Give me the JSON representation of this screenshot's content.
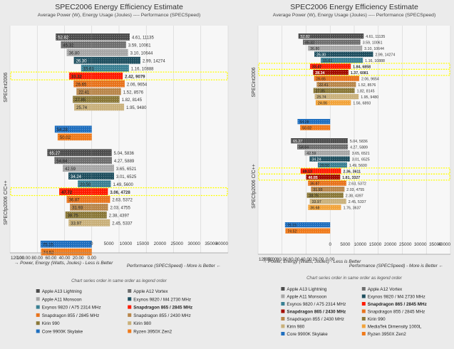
{
  "chart_data": [
    {
      "type": "bar",
      "title": "SPEC2006 Energy Efficiency Estimate",
      "subtitle": "Average Power (W), Energy Usage (Joules) ---- Performance (SPECSpeed)",
      "x_axis_energy_label": "→ Power, Energy (Watts, Joules) - Less is Better",
      "x_axis_perf_label": "Performance (SPECSpeed) - More is Better ←",
      "legend_caption": "Chart series order in same order as legend order",
      "energy_ticks": [
        "0",
        "5000",
        "10000",
        "15000",
        "20000",
        "25000",
        "30000",
        "35000",
        "40000"
      ],
      "perf_ticks": [
        "120.00",
        "100.00",
        "80.00",
        "60.00",
        "40.00",
        "20.00",
        "0.00"
      ],
      "energy_range": [
        0,
        40000
      ],
      "perf_range": [
        0,
        120
      ],
      "groups": [
        {
          "name": "SPECint2006",
          "rows": [
            {
              "energy": 11135,
              "label": "4.61, 11135",
              "perf": 52.82,
              "perf_label": "52.82",
              "color": "#4d4d4d"
            },
            {
              "energy": 10061,
              "label": "3.59, 10061",
              "perf": 45.32,
              "perf_label": "45.32",
              "color": "#6e6e6e"
            },
            {
              "energy": 10644,
              "label": "3.10, 10644",
              "perf": 36.8,
              "perf_label": "36.80",
              "color": "#a6a6a6"
            },
            {
              "energy": 14274,
              "label": "2.99, 14274",
              "perf": 26.3,
              "perf_label": "26.30",
              "color": "#1f4f5f"
            },
            {
              "energy": 10888,
              "label": "1.16, 10888",
              "perf": 15.61,
              "perf_label": "15.61",
              "color": "#3a8093"
            },
            {
              "energy": 9079,
              "label": "2.42, 9079",
              "perf": 33.32,
              "perf_label": "33.32",
              "color": "#ff1a00",
              "highlight": true
            },
            {
              "energy": 9654,
              "label": "2.06, 9654",
              "perf": 26.65,
              "perf_label": "26.65",
              "color": "#e8731c"
            },
            {
              "energy": 8576,
              "label": "1.52, 8576",
              "perf": 22.41,
              "perf_label": "22.41",
              "color": "#b8864a"
            },
            {
              "energy": 8145,
              "label": "1.82, 8145",
              "perf": 27.85,
              "perf_label": "27.85",
              "color": "#8a7838"
            },
            {
              "energy": 9480,
              "label": "1.95, 9480",
              "perf": 25.74,
              "perf_label": "25.74",
              "color": "#c9b07a"
            },
            {
              "spacer": true
            },
            {
              "energy": 0,
              "label": "",
              "perf": 54.28,
              "perf_label": "54.28",
              "color": "#1f6fbf"
            },
            {
              "energy": 0,
              "label": "",
              "perf": 50.02,
              "perf_label": "50.02",
              "color": "#f07a1a"
            }
          ]
        },
        {
          "name": "SPECfp2006 C/C++",
          "rows": [
            {
              "energy": 5836,
              "label": "5.04, 5836",
              "perf": 65.27,
              "perf_label": "65.27",
              "color": "#4d4d4d"
            },
            {
              "energy": 5889,
              "label": "4.27, 5889",
              "perf": 54.84,
              "perf_label": "54.84",
              "color": "#6e6e6e"
            },
            {
              "energy": 6521,
              "label": "3.65, 6521",
              "perf": 42.59,
              "perf_label": "42.59",
              "color": "#a6a6a6"
            },
            {
              "energy": 6525,
              "label": "3.01, 6525",
              "perf": 34.24,
              "perf_label": "34.24",
              "color": "#1f4f5f"
            },
            {
              "energy": 5600,
              "label": "1.49, 5600",
              "perf": 20.5,
              "perf_label": "20.50",
              "color": "#3a8093"
            },
            {
              "energy": 4728,
              "label": "3.06, 4728",
              "perf": 47.72,
              "perf_label": "47.72",
              "color": "#ff1a00",
              "highlight": true
            },
            {
              "energy": 5372,
              "label": "2.63, 5372",
              "perf": 36.87,
              "perf_label": "36.87",
              "color": "#e8731c"
            },
            {
              "energy": 4755,
              "label": "2.03, 4755",
              "perf": 31.93,
              "perf_label": "31.93",
              "color": "#b8864a"
            },
            {
              "energy": 4397,
              "label": "2.38, 4397",
              "perf": 38.75,
              "perf_label": "38.75",
              "color": "#8a7838"
            },
            {
              "energy": 5337,
              "label": "2.45, 5337",
              "perf": 33.97,
              "perf_label": "33.97",
              "color": "#c9b07a"
            },
            {
              "spacer": true
            },
            {
              "energy": 0,
              "label": "",
              "perf": 75.15,
              "perf_label": "75.15",
              "color": "#1f6fbf"
            },
            {
              "energy": 0,
              "label": "",
              "perf": 74.52,
              "perf_label": "74.52",
              "color": "#f07a1a"
            }
          ]
        }
      ],
      "legend": [
        {
          "name": "Apple A13 Lightning",
          "color": "#4d4d4d",
          "bold": false
        },
        {
          "name": "Apple A12 Vortex",
          "color": "#6e6e6e",
          "bold": false
        },
        {
          "name": "Apple A11 Monsoon",
          "color": "#a6a6a6",
          "bold": false
        },
        {
          "name": "Exynos 9820 / M4 2730 MHz",
          "color": "#1f4f5f",
          "bold": false
        },
        {
          "name": "Exynos 9820 / A75 2314 MHz",
          "color": "#3a8093",
          "bold": false
        },
        {
          "name": "Snapdragon 865 / 2845 MHz",
          "color": "#ff1a00",
          "bold": true
        },
        {
          "name": "Snapdragon 855 / 2845 MHz",
          "color": "#e8731c",
          "bold": false
        },
        {
          "name": "Snapdragon 855 / 2430 MHz",
          "color": "#b8864a",
          "bold": false
        },
        {
          "name": "Kirin 990",
          "color": "#8a7838",
          "bold": false
        },
        {
          "name": "Kirin 980",
          "color": "#c9b07a",
          "bold": false
        },
        {
          "name": "Core 9900K Skylake",
          "color": "#1f6fbf",
          "bold": false
        },
        {
          "name": "Ryzen 3950X Zen2",
          "color": "#f07a1a",
          "bold": false
        }
      ]
    },
    {
      "type": "bar",
      "title": "SPEC2006 Energy Efficiency Estimate",
      "subtitle": "Average Power (W), Energy Usage (Joules) ---- Performance (SPECSpeed)",
      "x_axis_energy_label": "→ Power, Energy (Watts, Joules) - Less is Better",
      "x_axis_perf_label": "Performance (SPECSpeed) - More is Better ←",
      "legend_caption": "Chart series order in same order as legend order",
      "energy_ticks": [
        "0",
        "5000",
        "10000",
        "15000",
        "20000",
        "25000",
        "30000",
        "35000",
        "40000"
      ],
      "perf_ticks": [
        "120.00",
        "100.00",
        "80.00",
        "60.00",
        "40.00",
        "20.00",
        "0.00"
      ],
      "energy_range": [
        0,
        40000
      ],
      "perf_range": [
        0,
        120
      ],
      "groups": [
        {
          "name": "SPECint2006",
          "rows": [
            {
              "energy": 11135,
              "label": "4.61, 11135",
              "perf": 52.82,
              "perf_label": "52.82",
              "color": "#4d4d4d"
            },
            {
              "energy": 10061,
              "label": "3.59, 10061",
              "perf": 45.32,
              "perf_label": "45.32",
              "color": "#6e6e6e"
            },
            {
              "energy": 10644,
              "label": "3.10, 10644",
              "perf": 36.8,
              "perf_label": "36.80",
              "color": "#a6a6a6"
            },
            {
              "energy": 14274,
              "label": "2.99, 14274",
              "perf": 26.3,
              "perf_label": "26.30",
              "color": "#1f4f5f"
            },
            {
              "energy": 10888,
              "label": "1.16, 10888",
              "perf": 15.61,
              "perf_label": "15.61",
              "color": "#3a8093"
            },
            {
              "energy": 6858,
              "label": "1.84, 6858",
              "perf": 33.47,
              "perf_label": "33.47",
              "color": "#ff1a00",
              "highlight": true
            },
            {
              "energy": 6081,
              "label": "1.37, 6081",
              "perf": 28.34,
              "perf_label": "28.34",
              "color": "#a30d00",
              "highlight": true
            },
            {
              "energy": 9654,
              "label": "2.06, 9654",
              "perf": 26.65,
              "perf_label": "26.65",
              "color": "#e8731c"
            },
            {
              "energy": 8576,
              "label": "1.52, 8576",
              "perf": 22.41,
              "perf_label": "22.41",
              "color": "#b8864a"
            },
            {
              "energy": 8145,
              "label": "1.82, 8145",
              "perf": 27.85,
              "perf_label": "27.85",
              "color": "#8a7838"
            },
            {
              "energy": 9480,
              "label": "1.95, 9480",
              "perf": 25.74,
              "perf_label": "25.74",
              "color": "#c9b07a"
            },
            {
              "energy": 6893,
              "label": "1.56, 6893",
              "perf": 24.06,
              "perf_label": "24.06",
              "color": "#f2a33a"
            },
            {
              "spacer": true
            },
            {
              "energy": 0,
              "label": "",
              "perf": 54.28,
              "perf_label": "54.28",
              "color": "#1f6fbf"
            },
            {
              "energy": 0,
              "label": "",
              "perf": 50.02,
              "perf_label": "50.02",
              "color": "#f07a1a"
            }
          ]
        },
        {
          "name": "SPECfp2006 C/C++",
          "rows": [
            {
              "energy": 5836,
              "label": "5.04, 5836",
              "perf": 65.27,
              "perf_label": "65.27",
              "color": "#4d4d4d"
            },
            {
              "energy": 5889,
              "label": "4.27, 5889",
              "perf": 54.84,
              "perf_label": "54.84",
              "color": "#6e6e6e"
            },
            {
              "energy": 6521,
              "label": "3.65, 6521",
              "perf": 42.59,
              "perf_label": "42.59",
              "color": "#a6a6a6"
            },
            {
              "energy": 6525,
              "label": "3.01, 6525",
              "perf": 34.24,
              "perf_label": "34.24",
              "color": "#1f4f5f"
            },
            {
              "energy": 5600,
              "label": "1.49, 5600",
              "perf": 20.5,
              "perf_label": "20.50",
              "color": "#3a8093"
            },
            {
              "energy": 3611,
              "label": "2.36, 3611",
              "perf": 49.13,
              "perf_label": "49.13",
              "color": "#ff1a00",
              "highlight": true
            },
            {
              "energy": 3327,
              "label": "1.81, 3327",
              "perf": 40.05,
              "perf_label": "40.05",
              "color": "#a30d00",
              "highlight": true
            },
            {
              "energy": 5372,
              "label": "2.63, 5372",
              "perf": 36.87,
              "perf_label": "36.87",
              "color": "#e8731c"
            },
            {
              "energy": 4755,
              "label": "2.03, 4755",
              "perf": 31.93,
              "perf_label": "31.93",
              "color": "#b8864a"
            },
            {
              "energy": 4397,
              "label": "2.38, 4397",
              "perf": 38.75,
              "perf_label": "38.75",
              "color": "#8a7838"
            },
            {
              "energy": 5337,
              "label": "2.45, 5337",
              "perf": 33.97,
              "perf_label": "33.97",
              "color": "#c9b07a"
            },
            {
              "energy": 3637,
              "label": "1.76, 3637",
              "perf": 36.68,
              "perf_label": "36.68",
              "color": "#f2a33a"
            },
            {
              "spacer": true
            },
            {
              "energy": 0,
              "label": "",
              "perf": 75.15,
              "perf_label": "75.15",
              "color": "#1f6fbf"
            },
            {
              "energy": 0,
              "label": "",
              "perf": 74.52,
              "perf_label": "74.52",
              "color": "#f07a1a"
            }
          ]
        }
      ],
      "legend": [
        {
          "name": "Apple A13 Lightning",
          "color": "#4d4d4d",
          "bold": false
        },
        {
          "name": "Apple A12 Vortex",
          "color": "#6e6e6e",
          "bold": false
        },
        {
          "name": "Apple A11 Monsoon",
          "color": "#a6a6a6",
          "bold": false
        },
        {
          "name": "Exynos 9820 / M4 2730 MHz",
          "color": "#1f4f5f",
          "bold": false
        },
        {
          "name": "Exynos 9820 / A75 2314 MHz",
          "color": "#3a8093",
          "bold": false
        },
        {
          "name": "Snapdragon 865 / 2845 MHz",
          "color": "#ff1a00",
          "bold": true
        },
        {
          "name": "Snapdragon 865 / 2430 MHz",
          "color": "#a30d00",
          "bold": true
        },
        {
          "name": "Snapdragon 855 / 2845 MHz",
          "color": "#e8731c",
          "bold": false
        },
        {
          "name": "Snapdragon 855 / 2430 MHz",
          "color": "#b8864a",
          "bold": false
        },
        {
          "name": "Kirin 990",
          "color": "#8a7838",
          "bold": false
        },
        {
          "name": "Kirin 980",
          "color": "#c9b07a",
          "bold": false
        },
        {
          "name": "MediaTek Dimensity 1000L",
          "color": "#f2a33a",
          "bold": false
        },
        {
          "name": "Core 9900K Skylake",
          "color": "#1f6fbf",
          "bold": false
        },
        {
          "name": "Ryzen 3950X Zen2",
          "color": "#f07a1a",
          "bold": false
        }
      ]
    }
  ]
}
